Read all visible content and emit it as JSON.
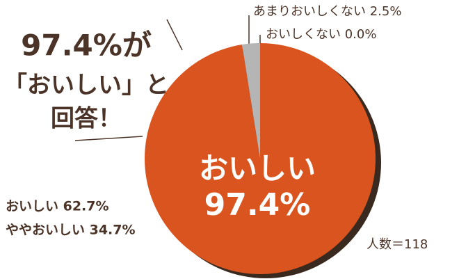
{
  "chart_data": {
    "type": "pie",
    "headline": [
      "97.4%が",
      "「おいしい」と",
      "回答！"
    ],
    "categories": [
      "おいしい",
      "あまりおいしくない",
      "おいしくない"
    ],
    "values": [
      97.4,
      2.5,
      0.0
    ],
    "value_labels": [
      "97.4%",
      "2.5%",
      "0.0%"
    ],
    "colors": [
      "#d9541f",
      "#b5b5b5",
      "#8a8a8a"
    ],
    "annotations": [
      "おいしい 62.7%",
      "ややおいしい 34.7%"
    ],
    "note": "人数＝118"
  }
}
